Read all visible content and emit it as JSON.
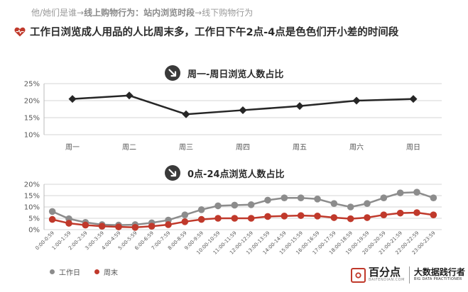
{
  "breadcrumb": {
    "part1": "他/她们是谁",
    "part2": "线上购物行为",
    "part3": "站内浏览时段",
    "part4": "线下购物行为",
    "arrow": "→",
    "colon": "："
  },
  "headline": "工作日浏览成人用品的人比周末多，工作日下午2点-4点是色色们开小差的时间段",
  "section1_title": "周一-周日浏览人数占比",
  "section2_title": "0点-24点浏览人数占比",
  "legend": {
    "weekday": "工作日",
    "weekend": "周末"
  },
  "logo": {
    "name": "百分点",
    "url_text": "BAIFENDIAN.COM",
    "slogan_cn": "大数据践行者",
    "slogan_en": "BIG DATA PRACTITIONER"
  },
  "colors": {
    "weekday": "#8c8c8c",
    "weekend": "#c0392b",
    "weekly_line": "#262626",
    "accent": "#c0392b"
  },
  "icons": {
    "headline": "heart-ecg-icon",
    "section": "trend-down-arrow-icon"
  },
  "chart_data": [
    {
      "type": "line",
      "title": "周一-周日浏览人数占比",
      "categories": [
        "周一",
        "周二",
        "周三",
        "周四",
        "周五",
        "周六",
        "周日"
      ],
      "series": [
        {
          "values": [
            20.5,
            21.5,
            16.0,
            17.2,
            18.4,
            20.0,
            20.5
          ]
        }
      ],
      "ylim": [
        10,
        25
      ],
      "yticks": [
        "10%",
        "15%",
        "20%",
        "25%"
      ],
      "grid": true
    },
    {
      "type": "line",
      "title": "0点-24点浏览人数占比",
      "categories": [
        "0:00-0:59",
        "1:00-1:59",
        "2:00-2:59",
        "3:00-3:59",
        "4:00-4:59",
        "5:00-5:59",
        "6:00-6:59",
        "7:00-7:59",
        "8:00-8:59",
        "9:00-9:59",
        "10:00-10:59",
        "11:00-11:59",
        "12:00-12:59",
        "13:00-13:59",
        "14:00-14:59",
        "15:00-15:59",
        "16:00-16:59",
        "17:00-17:59",
        "18:00-18:59",
        "19:00-19:59",
        "20:00-20:59",
        "21:00-21:59",
        "22:00-22:59",
        "23:00-23:59"
      ],
      "series": [
        {
          "name": "工作日",
          "values": [
            8.0,
            4.8,
            3.2,
            2.2,
            2.0,
            2.2,
            3.0,
            4.2,
            6.5,
            8.8,
            10.5,
            10.8,
            11.0,
            13.0,
            14.0,
            14.0,
            13.5,
            11.5,
            10.0,
            11.5,
            14.0,
            16.2,
            16.5,
            14.0
          ]
        },
        {
          "name": "周末",
          "values": [
            4.5,
            2.8,
            2.0,
            1.5,
            1.2,
            1.0,
            1.5,
            2.2,
            3.5,
            4.5,
            5.0,
            5.0,
            5.0,
            5.8,
            6.0,
            6.2,
            6.0,
            5.3,
            4.8,
            5.3,
            6.5,
            7.3,
            7.5,
            6.5
          ]
        }
      ],
      "ylim": [
        0,
        20
      ],
      "yticks": [
        "0%",
        "5%",
        "10%",
        "15%",
        "20%"
      ],
      "grid": true,
      "legend_position": "bottom-left"
    }
  ]
}
